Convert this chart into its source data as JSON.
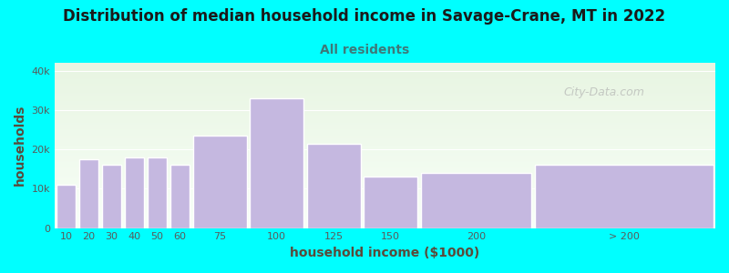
{
  "title": "Distribution of median household income in Savage-Crane, MT in 2022",
  "subtitle": "All residents",
  "xlabel": "household income ($1000)",
  "ylabel": "households",
  "background_color": "#00FFFF",
  "plot_bg_gradient_top": "#e8f5e2",
  "plot_bg_gradient_bottom": "#f8fff8",
  "bar_color": "#c5b8e0",
  "bar_edge_color": "#ffffff",
  "values": [
    11000,
    17500,
    16000,
    18000,
    18000,
    16000,
    23500,
    33000,
    21500,
    13000,
    14000,
    16000
  ],
  "bar_widths": [
    10,
    10,
    10,
    10,
    10,
    10,
    25,
    25,
    25,
    25,
    50,
    80
  ],
  "bar_lefts": [
    0,
    10,
    20,
    30,
    40,
    50,
    60,
    85,
    110,
    135,
    160,
    210
  ],
  "ylim": [
    0,
    42000
  ],
  "yticks": [
    0,
    10000,
    20000,
    30000,
    40000
  ],
  "ytick_labels": [
    "0",
    "10k",
    "20k",
    "30k",
    "40k"
  ],
  "title_fontsize": 12,
  "subtitle_fontsize": 10,
  "axis_label_fontsize": 10,
  "title_color": "#1a1a1a",
  "subtitle_color": "#3d7a7a",
  "text_color": "#5a5a5a",
  "xlabel_color": "#5a4a3a",
  "ylabel_color": "#5a4a3a",
  "tick_color": "#5a5a5a",
  "watermark_text": "City-Data.com",
  "xtick_positions": [
    5,
    15,
    25,
    35,
    45,
    55,
    72.5,
    97.5,
    122.5,
    147.5,
    185,
    250
  ],
  "xtick_labels": [
    "10",
    "20",
    "30",
    "40",
    "50",
    "60",
    "75",
    "100",
    "125",
    "150",
    "200",
    "> 200"
  ],
  "xlim": [
    0,
    290
  ]
}
